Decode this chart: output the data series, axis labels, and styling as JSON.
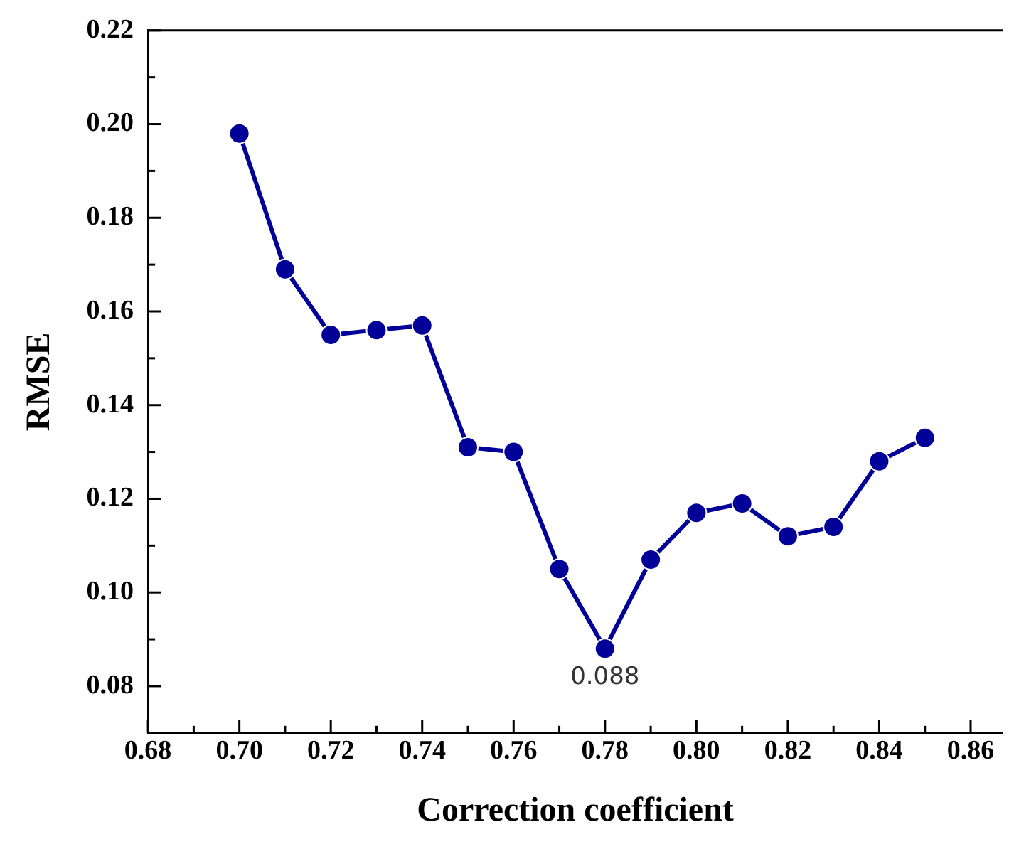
{
  "chart_data": {
    "type": "line",
    "xlabel": "Correction coefficient",
    "ylabel": "RMSE",
    "x": [
      0.7,
      0.71,
      0.72,
      0.73,
      0.74,
      0.75,
      0.76,
      0.77,
      0.78,
      0.79,
      0.8,
      0.81,
      0.82,
      0.83,
      0.84,
      0.85
    ],
    "series": [
      {
        "color": "#000099",
        "values": [
          0.198,
          0.169,
          0.155,
          0.156,
          0.157,
          0.131,
          0.13,
          0.105,
          0.088,
          0.107,
          0.117,
          0.119,
          0.112,
          0.114,
          0.128,
          0.133
        ]
      }
    ],
    "xlim": [
      0.68,
      0.867
    ],
    "xticks": [
      0.68,
      {
        "value": 0.69,
        "label": null
      },
      "0.70",
      {
        "value": 0.71,
        "label": null
      },
      0.72,
      {
        "value": 0.73,
        "label": null
      },
      0.74,
      {
        "value": 0.75,
        "label": null
      },
      0.76,
      {
        "value": 0.77,
        "label": null
      },
      0.78,
      {
        "value": 0.79,
        "label": null
      },
      "0.80",
      {
        "value": 0.81,
        "label": null
      },
      0.82,
      {
        "value": 0.83,
        "label": null
      },
      0.84,
      {
        "value": 0.85,
        "label": null
      },
      0.86
    ],
    "ylim": [
      0.07,
      0.22
    ],
    "yticks": [
      0.08,
      {
        "value": 0.09,
        "label": null
      },
      "0.10",
      {
        "value": 0.11,
        "label": null
      },
      0.12,
      {
        "value": 0.13,
        "label": null
      },
      0.14,
      {
        "value": 0.15,
        "label": null
      },
      0.16,
      {
        "value": 0.17,
        "label": null
      },
      0.18,
      {
        "value": 0.19,
        "label": null
      },
      "0.20",
      {
        "value": 0.21,
        "label": null
      },
      0.22
    ],
    "marker": "circle",
    "line_style": "solid",
    "annotations": [
      {
        "text": "0.088",
        "x": 0.78,
        "y": 0.088
      }
    ]
  }
}
